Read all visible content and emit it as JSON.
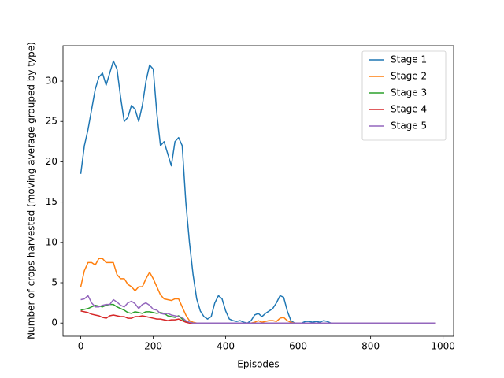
{
  "chart_data": {
    "type": "line",
    "xlabel": "Episodes",
    "ylabel": "Number of crops harvested (moving average grouped by type)",
    "x": [
      0,
      10,
      20,
      30,
      40,
      50,
      60,
      70,
      80,
      90,
      100,
      110,
      120,
      130,
      140,
      150,
      160,
      170,
      180,
      190,
      200,
      210,
      220,
      230,
      240,
      250,
      260,
      270,
      280,
      290,
      300,
      310,
      320,
      330,
      340,
      350,
      360,
      370,
      380,
      390,
      400,
      410,
      420,
      430,
      440,
      450,
      460,
      470,
      480,
      490,
      500,
      510,
      520,
      530,
      540,
      550,
      560,
      570,
      580,
      590,
      600,
      610,
      620,
      630,
      640,
      650,
      660,
      670,
      680,
      690,
      700,
      710,
      720,
      730,
      740,
      750,
      760,
      770,
      780,
      790,
      800,
      810,
      820,
      830,
      840,
      850,
      860,
      870,
      880,
      890,
      900,
      910,
      920,
      930,
      940,
      950,
      960,
      970,
      980
    ],
    "series": [
      {
        "name": "Stage 1",
        "color": "#1f77b4",
        "values": [
          18.5,
          22,
          24,
          26.5,
          29,
          30.5,
          31,
          29.5,
          31,
          32.5,
          31.5,
          28,
          25,
          25.5,
          27,
          26.5,
          25,
          27,
          30,
          32,
          31.5,
          26,
          22,
          22.5,
          21,
          19.5,
          22.5,
          23,
          22,
          15,
          10,
          6,
          3,
          1.5,
          0.8,
          0.5,
          0.8,
          2.5,
          3.4,
          3,
          1.5,
          0.5,
          0.3,
          0.2,
          0.3,
          0.1,
          0,
          0.3,
          1,
          1.2,
          0.8,
          1.2,
          1.5,
          1.8,
          2.5,
          3.4,
          3.2,
          1.5,
          0.3,
          0,
          0,
          0,
          0.2,
          0.2,
          0.1,
          0.2,
          0.1,
          0.3,
          0.2,
          0,
          0,
          0,
          0,
          0,
          0,
          0,
          0,
          0,
          0,
          0,
          0,
          0,
          0,
          0,
          0,
          0,
          0,
          0,
          0,
          0,
          0,
          0,
          0,
          0,
          0,
          0,
          0,
          0,
          0
        ]
      },
      {
        "name": "Stage 2",
        "color": "#ff7f0e",
        "values": [
          4.5,
          6.5,
          7.5,
          7.5,
          7.2,
          8,
          8,
          7.5,
          7.5,
          7.5,
          6,
          5.5,
          5.5,
          4.8,
          4.5,
          4,
          4.5,
          4.5,
          5.5,
          6.3,
          5.5,
          4.5,
          3.5,
          3,
          2.9,
          2.8,
          3,
          3,
          2,
          1,
          0.3,
          0.1,
          0,
          0,
          0,
          0,
          0,
          0,
          0,
          0,
          0,
          0,
          0,
          0,
          0,
          0,
          0,
          0,
          0.1,
          0.3,
          0.1,
          0.2,
          0.3,
          0.3,
          0.2,
          0.6,
          0.7,
          0.3,
          0.1,
          0,
          0,
          0,
          0,
          0,
          0,
          0,
          0,
          0,
          0,
          0,
          0,
          0,
          0,
          0,
          0,
          0,
          0,
          0,
          0,
          0,
          0,
          0,
          0,
          0,
          0,
          0,
          0,
          0,
          0,
          0,
          0,
          0,
          0,
          0,
          0,
          0,
          0,
          0,
          0
        ]
      },
      {
        "name": "Stage 3",
        "color": "#2ca02c",
        "values": [
          1.6,
          1.7,
          1.8,
          2,
          2.2,
          2.1,
          2,
          2.2,
          2.3,
          2.3,
          2,
          1.8,
          1.6,
          1.3,
          1.2,
          1.4,
          1.3,
          1.2,
          1.4,
          1.4,
          1.3,
          1.2,
          1.3,
          1.2,
          0.9,
          0.8,
          0.7,
          0.9,
          0.5,
          0.2,
          0.1,
          0,
          0,
          0,
          0,
          0,
          0,
          0,
          0,
          0,
          0,
          0,
          0,
          0,
          0,
          0,
          0,
          0,
          0,
          0,
          0,
          0,
          0,
          0,
          0,
          0,
          0,
          0,
          0,
          0,
          0,
          0,
          0,
          0,
          0,
          0,
          0,
          0,
          0,
          0,
          0,
          0,
          0,
          0,
          0,
          0,
          0,
          0,
          0,
          0,
          0,
          0,
          0,
          0,
          0,
          0,
          0,
          0,
          0,
          0,
          0,
          0,
          0,
          0,
          0,
          0,
          0,
          0,
          0
        ]
      },
      {
        "name": "Stage 4",
        "color": "#d62728",
        "values": [
          1.5,
          1.4,
          1.3,
          1.1,
          1,
          0.9,
          0.7,
          0.6,
          0.9,
          1,
          0.9,
          0.8,
          0.8,
          0.6,
          0.6,
          0.8,
          0.8,
          0.9,
          0.8,
          0.7,
          0.6,
          0.5,
          0.5,
          0.4,
          0.3,
          0.4,
          0.4,
          0.5,
          0.3,
          0.1,
          0,
          0,
          0,
          0,
          0,
          0,
          0,
          0,
          0,
          0,
          0,
          0,
          0,
          0,
          0,
          0,
          0,
          0,
          0,
          0,
          0,
          0,
          0,
          0,
          0,
          0,
          0,
          0,
          0,
          0,
          0,
          0,
          0,
          0,
          0,
          0,
          0,
          0,
          0,
          0,
          0,
          0,
          0,
          0,
          0,
          0,
          0,
          0,
          0,
          0,
          0,
          0,
          0,
          0,
          0,
          0,
          0,
          0,
          0,
          0,
          0,
          0,
          0,
          0,
          0,
          0,
          0,
          0,
          0
        ]
      },
      {
        "name": "Stage 5",
        "color": "#9467bd",
        "values": [
          2.9,
          3,
          3.4,
          2.5,
          2,
          2,
          2.2,
          2.3,
          2.3,
          2.9,
          2.6,
          2.2,
          2,
          2.5,
          2.7,
          2.4,
          1.8,
          2.3,
          2.5,
          2.2,
          1.7,
          1.6,
          1.2,
          1.1,
          1.2,
          1,
          0.9,
          0.8,
          0.7,
          0.3,
          0.1,
          0,
          0,
          0,
          0,
          0,
          0,
          0,
          0,
          0,
          0,
          0,
          0,
          0,
          0,
          0,
          0,
          0,
          0,
          0,
          0,
          0,
          0,
          0,
          0,
          0,
          0,
          0,
          0,
          0,
          0,
          0,
          0,
          0,
          0,
          0,
          0,
          0,
          0,
          0,
          0,
          0,
          0,
          0,
          0,
          0,
          0,
          0,
          0,
          0,
          0,
          0,
          0,
          0,
          0,
          0,
          0,
          0,
          0,
          0,
          0,
          0,
          0,
          0,
          0,
          0,
          0,
          0,
          0
        ]
      }
    ],
    "xlim": [
      -49,
      1029
    ],
    "xticks": [
      0,
      200,
      400,
      600,
      800,
      1000
    ],
    "ylim": [
      -1.64,
      34.4
    ],
    "yticks": [
      0,
      5,
      10,
      15,
      20,
      25,
      30
    ],
    "legend": "upper right"
  }
}
